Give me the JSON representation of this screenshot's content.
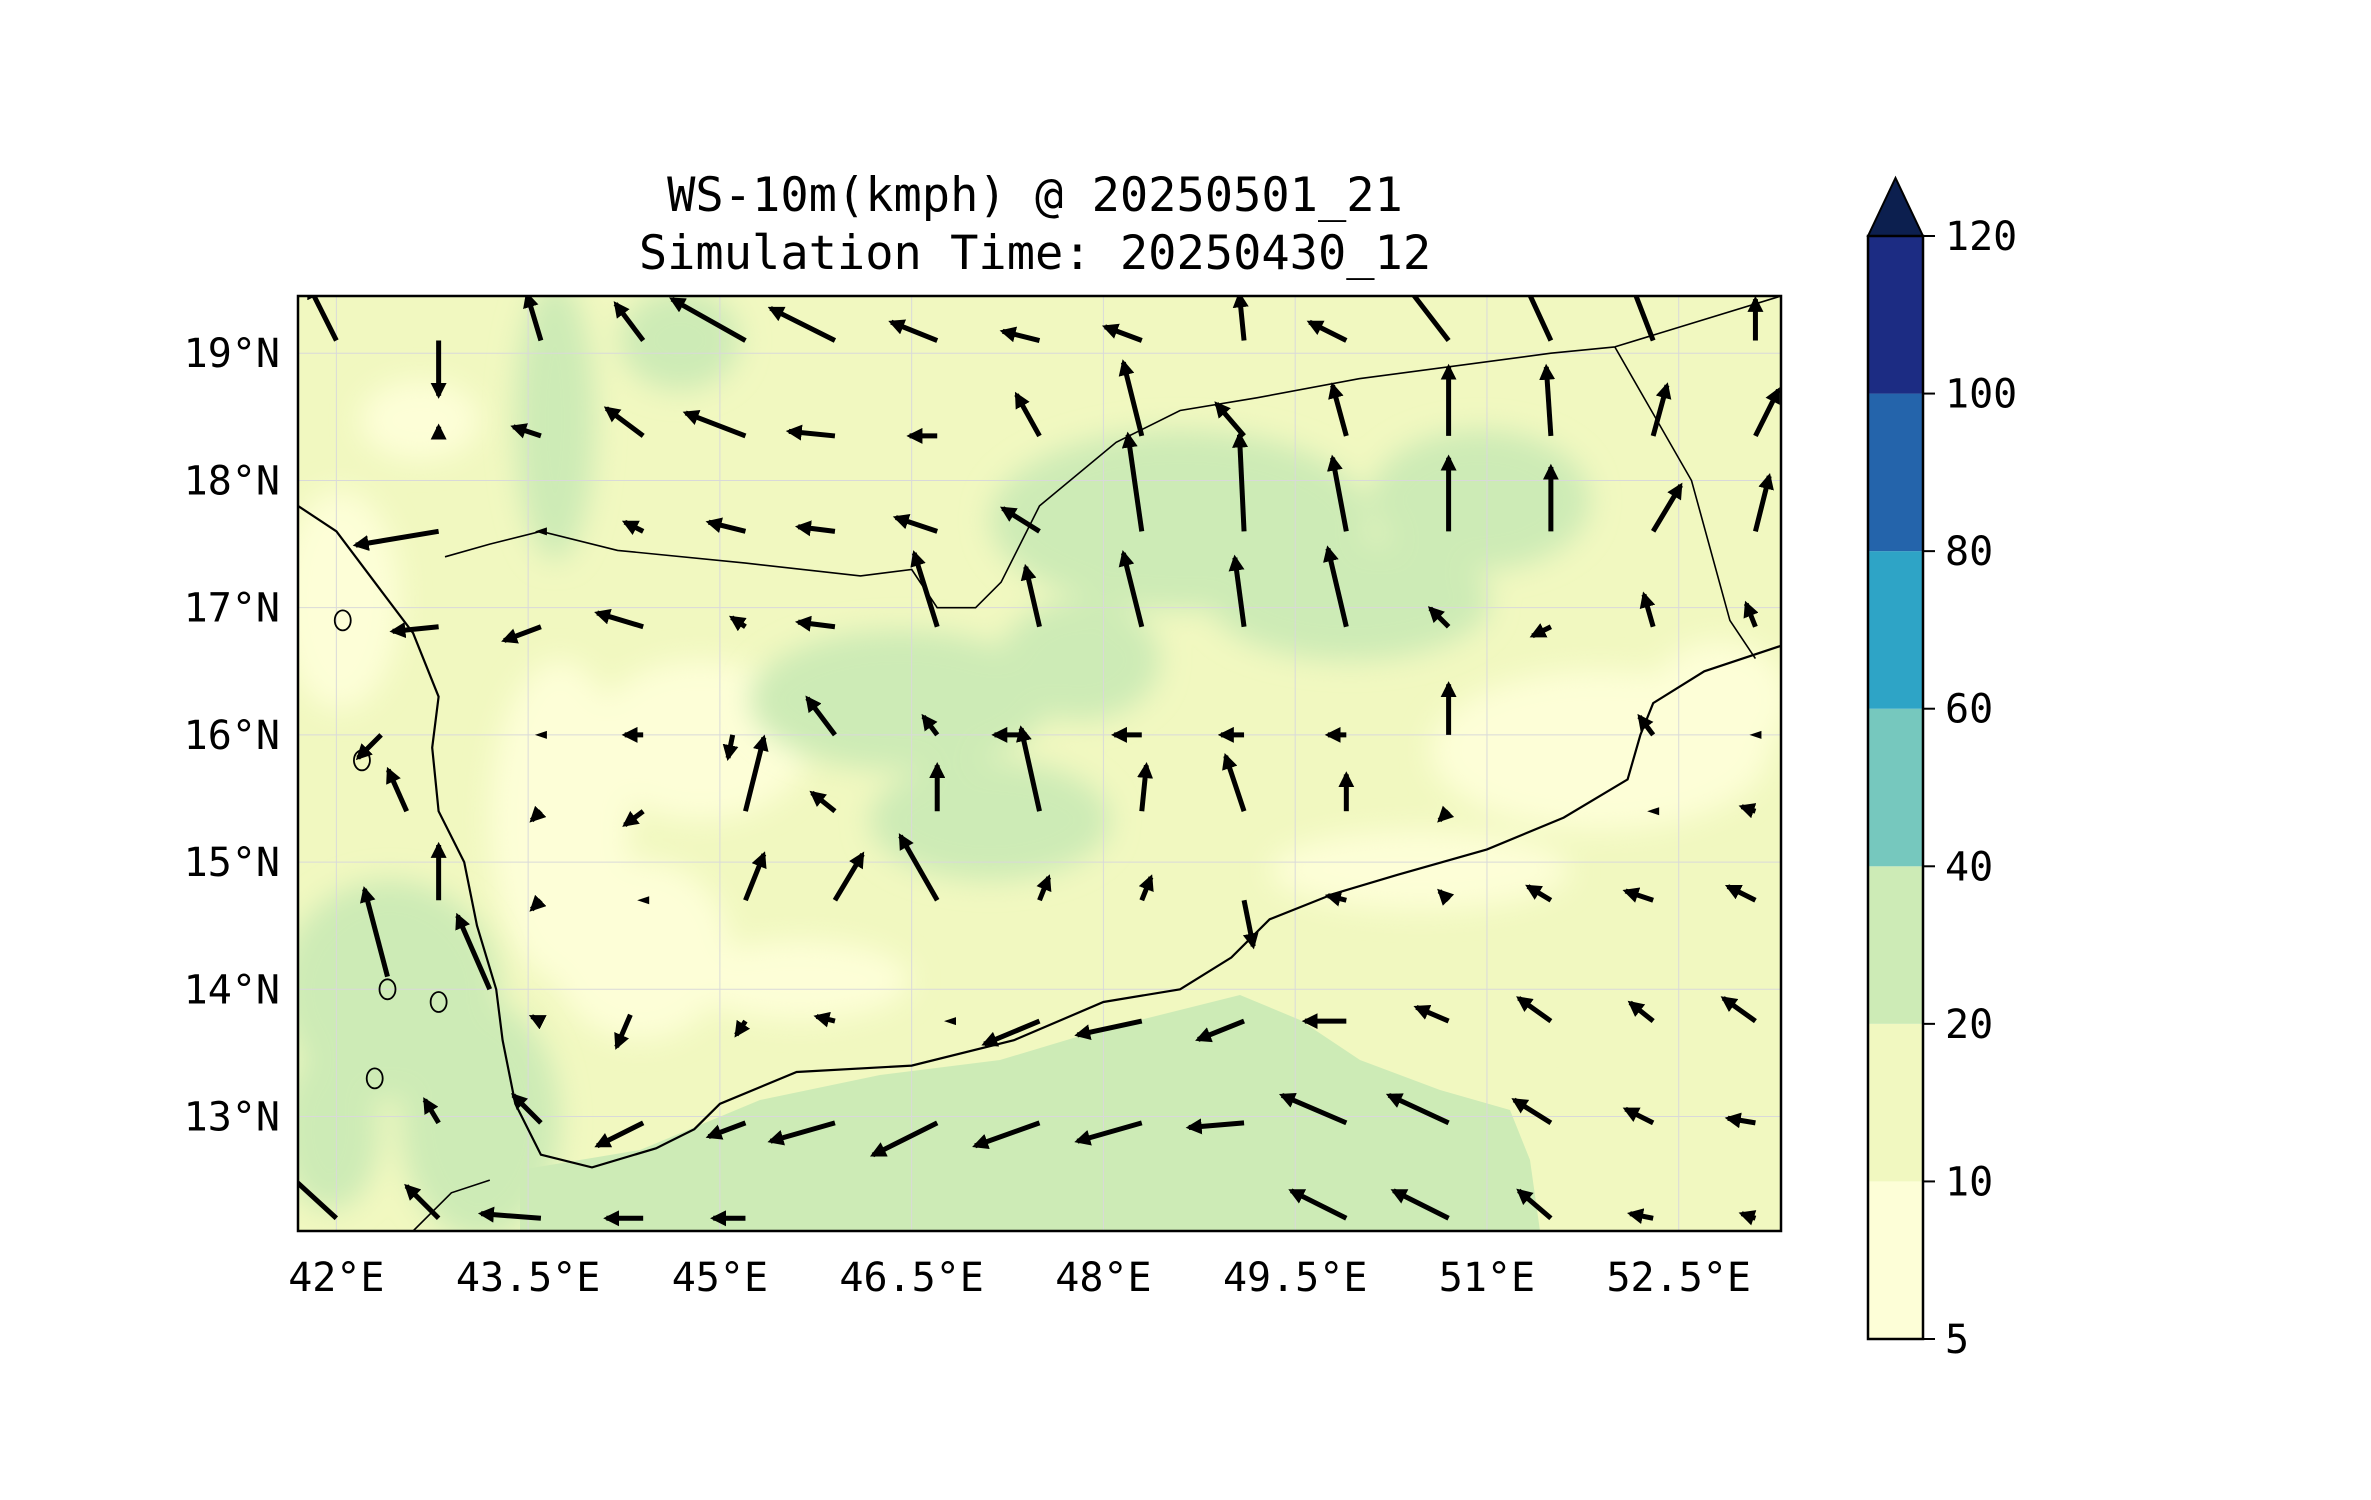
{
  "title": {
    "line1": "WS-10m(kmph) @ 20250501_21",
    "line2": "Simulation Time: 20250430_12"
  },
  "map": {
    "type": "wind-speed-contour-with-vectors",
    "lon_range": [
      41.7,
      53.3
    ],
    "lat_range": [
      12.1,
      19.45
    ],
    "lon_ticks": [
      "42°E",
      "43.5°E",
      "45°E",
      "46.5°E",
      "48°E",
      "49.5°E",
      "51°E",
      "52.5°E"
    ],
    "lon_tick_values": [
      42,
      43.5,
      45,
      46.5,
      48,
      49.5,
      51,
      52.5
    ],
    "lat_ticks": [
      "19°N",
      "18°N",
      "17°N",
      "16°N",
      "15°N",
      "14°N",
      "13°N"
    ],
    "lat_tick_values": [
      19,
      18,
      17,
      16,
      15,
      14,
      13
    ],
    "grid": true,
    "land_color": "#f1f8c0",
    "coastline": [
      [
        41.7,
        17.8
      ],
      [
        42.0,
        17.6
      ],
      [
        42.3,
        17.2
      ],
      [
        42.6,
        16.8
      ],
      [
        42.8,
        16.3
      ],
      [
        42.75,
        15.9
      ],
      [
        42.8,
        15.4
      ],
      [
        43.0,
        15.0
      ],
      [
        43.1,
        14.5
      ],
      [
        43.25,
        14.0
      ],
      [
        43.3,
        13.6
      ],
      [
        43.4,
        13.1
      ],
      [
        43.6,
        12.7
      ],
      [
        44.0,
        12.6
      ],
      [
        44.5,
        12.75
      ],
      [
        44.8,
        12.9
      ],
      [
        45.0,
        13.1
      ],
      [
        45.6,
        13.35
      ],
      [
        46.5,
        13.4
      ],
      [
        47.3,
        13.6
      ],
      [
        48.0,
        13.9
      ],
      [
        48.6,
        14.0
      ],
      [
        49.0,
        14.25
      ],
      [
        49.3,
        14.55
      ],
      [
        49.8,
        14.75
      ],
      [
        50.3,
        14.9
      ],
      [
        51.0,
        15.1
      ],
      [
        51.6,
        15.35
      ],
      [
        52.1,
        15.65
      ],
      [
        52.2,
        16.0
      ],
      [
        52.3,
        16.25
      ],
      [
        52.7,
        16.5
      ],
      [
        53.3,
        16.7
      ]
    ],
    "borders": [
      [
        [
          42.85,
          17.4
        ],
        [
          43.2,
          17.5
        ],
        [
          43.6,
          17.6
        ],
        [
          44.2,
          17.45
        ],
        [
          45.2,
          17.35
        ],
        [
          46.1,
          17.25
        ],
        [
          46.5,
          17.3
        ],
        [
          46.7,
          17.0
        ],
        [
          47.0,
          17.0
        ],
        [
          47.2,
          17.2
        ],
        [
          47.5,
          17.8
        ],
        [
          48.1,
          18.3
        ],
        [
          48.6,
          18.55
        ],
        [
          49.2,
          18.65
        ],
        [
          50.0,
          18.8
        ],
        [
          51.5,
          19.0
        ],
        [
          52.0,
          19.05
        ]
      ],
      [
        [
          52.0,
          19.05
        ],
        [
          53.3,
          19.45
        ]
      ],
      [
        [
          52.0,
          19.05
        ],
        [
          52.6,
          18.0
        ],
        [
          52.9,
          16.9
        ],
        [
          53.1,
          16.6
        ]
      ],
      [
        [
          42.6,
          12.1
        ],
        [
          42.9,
          12.4
        ],
        [
          43.2,
          12.5
        ]
      ]
    ],
    "red_sea_islands": [
      [
        42.05,
        16.9
      ],
      [
        42.2,
        15.8
      ],
      [
        42.4,
        14.0
      ],
      [
        42.8,
        13.9
      ],
      [
        42.3,
        13.3
      ]
    ],
    "vectors": [
      [
        42.0,
        19.1,
        -0.6,
        1.2
      ],
      [
        42.8,
        19.1,
        0,
        -1.2
      ],
      [
        43.6,
        19.1,
        -0.3,
        1.0
      ],
      [
        44.4,
        19.1,
        -0.6,
        0.8
      ],
      [
        45.2,
        19.1,
        -1.6,
        0.9
      ],
      [
        45.9,
        19.1,
        -1.4,
        0.7
      ],
      [
        46.7,
        19.1,
        -1.0,
        0.4
      ],
      [
        47.5,
        19.1,
        -0.8,
        0.2
      ],
      [
        48.3,
        19.1,
        -0.8,
        0.3
      ],
      [
        49.1,
        19.1,
        -0.1,
        1.0
      ],
      [
        49.9,
        19.1,
        -0.8,
        0.4
      ],
      [
        50.7,
        19.1,
        -1.0,
        1.3
      ],
      [
        51.5,
        19.1,
        -0.6,
        1.3
      ],
      [
        52.3,
        19.1,
        -0.5,
        1.3
      ],
      [
        53.1,
        19.1,
        0,
        0.9
      ],
      [
        42.8,
        18.35,
        0,
        0.2
      ],
      [
        43.6,
        18.35,
        -0.6,
        0.2
      ],
      [
        44.4,
        18.35,
        -0.8,
        0.6
      ],
      [
        45.2,
        18.35,
        -1.3,
        0.5
      ],
      [
        45.9,
        18.35,
        -1.0,
        0.1
      ],
      [
        46.7,
        18.35,
        -0.6,
        0.0
      ],
      [
        47.5,
        18.35,
        -0.5,
        0.9
      ],
      [
        48.3,
        18.35,
        -0.4,
        1.6
      ],
      [
        49.1,
        18.35,
        -0.6,
        0.7
      ],
      [
        49.9,
        18.35,
        -0.3,
        1.1
      ],
      [
        50.7,
        18.35,
        0,
        1.5
      ],
      [
        51.5,
        18.35,
        -0.1,
        1.5
      ],
      [
        52.3,
        18.35,
        0.3,
        1.1
      ],
      [
        53.1,
        18.35,
        0.5,
        1.0
      ],
      [
        42.8,
        17.6,
        -1.8,
        -0.3
      ],
      [
        43.6,
        17.6,
        0,
        0
      ],
      [
        44.4,
        17.6,
        -0.4,
        0.2
      ],
      [
        45.2,
        17.6,
        -0.8,
        0.2
      ],
      [
        45.9,
        17.6,
        -0.8,
        0.1
      ],
      [
        46.7,
        17.6,
        -0.9,
        0.3
      ],
      [
        47.5,
        17.6,
        -0.8,
        0.5
      ],
      [
        48.3,
        17.6,
        -0.3,
        2.1
      ],
      [
        49.1,
        17.6,
        -0.1,
        2.1
      ],
      [
        49.9,
        17.6,
        -0.3,
        1.6
      ],
      [
        50.7,
        17.6,
        0,
        1.6
      ],
      [
        51.5,
        17.6,
        0,
        1.4
      ],
      [
        52.3,
        17.6,
        0.6,
        1.0
      ],
      [
        53.1,
        17.6,
        0.3,
        1.2
      ],
      [
        42.8,
        16.85,
        -1.0,
        -0.1
      ],
      [
        43.6,
        16.85,
        -0.8,
        -0.3
      ],
      [
        44.4,
        16.85,
        -1.0,
        0.3
      ],
      [
        45.2,
        16.85,
        -0.3,
        0.2
      ],
      [
        45.9,
        16.85,
        -0.8,
        0.1
      ],
      [
        46.7,
        16.85,
        -0.5,
        1.6
      ],
      [
        47.5,
        16.85,
        -0.3,
        1.3
      ],
      [
        48.3,
        16.85,
        -0.4,
        1.6
      ],
      [
        49.1,
        16.85,
        -0.2,
        1.5
      ],
      [
        49.9,
        16.85,
        -0.4,
        1.7
      ],
      [
        50.7,
        16.85,
        -0.4,
        0.4
      ],
      [
        51.5,
        16.85,
        -0.4,
        -0.2
      ],
      [
        52.3,
        16.85,
        -0.2,
        0.7
      ],
      [
        53.1,
        16.85,
        -0.2,
        0.5
      ],
      [
        42.35,
        16.0,
        -0.5,
        -0.5
      ],
      [
        43.6,
        16.0,
        0,
        0
      ],
      [
        44.4,
        16.0,
        -0.4,
        0.0
      ],
      [
        45.1,
        16.0,
        -0.1,
        -0.5
      ],
      [
        45.9,
        16.0,
        -0.6,
        0.8
      ],
      [
        46.7,
        16.0,
        -0.3,
        0.4
      ],
      [
        47.4,
        16.0,
        -0.7,
        0.0
      ],
      [
        48.3,
        16.0,
        -0.6,
        0.0
      ],
      [
        49.1,
        16.0,
        -0.5,
        0.0
      ],
      [
        49.9,
        16.0,
        -0.4,
        0.0
      ],
      [
        50.7,
        16.0,
        0,
        1.1
      ],
      [
        52.3,
        16.0,
        -0.3,
        0.4
      ],
      [
        53.1,
        16.0,
        0,
        0
      ],
      [
        42.55,
        15.4,
        -0.4,
        0.9
      ],
      [
        43.6,
        15.4,
        -0.2,
        -0.2
      ],
      [
        44.4,
        15.4,
        -0.4,
        -0.3
      ],
      [
        45.2,
        15.4,
        0.4,
        1.6
      ],
      [
        45.9,
        15.4,
        -0.5,
        0.4
      ],
      [
        46.7,
        15.4,
        0,
        1.0
      ],
      [
        47.5,
        15.4,
        -0.4,
        1.8
      ],
      [
        48.3,
        15.4,
        0.1,
        1.0
      ],
      [
        49.1,
        15.4,
        -0.4,
        1.2
      ],
      [
        49.9,
        15.4,
        0,
        0.8
      ],
      [
        50.7,
        15.4,
        -0.2,
        -0.2
      ],
      [
        52.3,
        15.4,
        0,
        0
      ],
      [
        53.1,
        15.4,
        -0.3,
        0.1
      ],
      [
        42.8,
        14.7,
        0,
        1.2
      ],
      [
        43.6,
        14.7,
        -0.2,
        -0.2
      ],
      [
        44.4,
        14.7,
        0,
        0
      ],
      [
        45.2,
        14.7,
        0.4,
        1.0
      ],
      [
        45.9,
        14.7,
        0.6,
        1.0
      ],
      [
        46.7,
        14.7,
        -0.8,
        1.4
      ],
      [
        47.5,
        14.7,
        0.2,
        0.5
      ],
      [
        48.3,
        14.7,
        0.2,
        0.5
      ],
      [
        49.1,
        14.7,
        0.2,
        -1.0
      ],
      [
        49.9,
        14.7,
        -0.4,
        0.1
      ],
      [
        50.7,
        14.7,
        -0.2,
        0.2
      ],
      [
        51.5,
        14.7,
        -0.5,
        0.3
      ],
      [
        52.3,
        14.7,
        -0.6,
        0.2
      ],
      [
        53.1,
        14.7,
        -0.6,
        0.3
      ],
      [
        42.4,
        14.1,
        -0.5,
        1.9
      ],
      [
        43.2,
        14.0,
        -0.7,
        1.6
      ],
      [
        43.6,
        13.75,
        -0.2,
        0.1
      ],
      [
        44.3,
        13.8,
        -0.3,
        -0.7
      ],
      [
        45.2,
        13.75,
        -0.2,
        -0.3
      ],
      [
        45.9,
        13.75,
        -0.4,
        0.1
      ],
      [
        46.8,
        13.75,
        0,
        0
      ],
      [
        47.5,
        13.75,
        -1.2,
        -0.5
      ],
      [
        48.3,
        13.75,
        -1.4,
        -0.3
      ],
      [
        49.1,
        13.75,
        -1.0,
        -0.4
      ],
      [
        49.9,
        13.75,
        -0.9,
        0.0
      ],
      [
        50.7,
        13.75,
        -0.7,
        0.3
      ],
      [
        51.5,
        13.75,
        -0.7,
        0.5
      ],
      [
        52.3,
        13.75,
        -0.5,
        0.4
      ],
      [
        53.1,
        13.75,
        -0.7,
        0.5
      ],
      [
        42.8,
        12.95,
        -0.3,
        0.5
      ],
      [
        43.6,
        12.95,
        -0.6,
        0.6
      ],
      [
        44.4,
        12.95,
        -1.0,
        -0.5
      ],
      [
        45.2,
        12.95,
        -0.8,
        -0.3
      ],
      [
        45.9,
        12.95,
        -1.4,
        -0.4
      ],
      [
        46.7,
        12.95,
        -1.4,
        -0.7
      ],
      [
        47.5,
        12.95,
        -1.4,
        -0.5
      ],
      [
        48.3,
        12.95,
        -1.4,
        -0.4
      ],
      [
        49.1,
        12.95,
        -1.2,
        -0.1
      ],
      [
        49.9,
        12.95,
        -1.4,
        0.6
      ],
      [
        50.7,
        12.95,
        -1.3,
        0.6
      ],
      [
        51.5,
        12.95,
        -0.8,
        0.5
      ],
      [
        52.3,
        12.95,
        -0.6,
        0.3
      ],
      [
        53.1,
        12.95,
        -0.6,
        0.1
      ],
      [
        42.0,
        12.2,
        -1.2,
        1.1
      ],
      [
        42.8,
        12.2,
        -0.7,
        0.7
      ],
      [
        43.6,
        12.2,
        -1.3,
        0.1
      ],
      [
        44.4,
        12.2,
        -0.8,
        0.0
      ],
      [
        45.2,
        12.2,
        -0.7,
        0.0
      ],
      [
        49.9,
        12.2,
        -1.2,
        0.6
      ],
      [
        50.7,
        12.2,
        -1.2,
        0.6
      ],
      [
        51.5,
        12.2,
        -0.7,
        0.6
      ],
      [
        52.3,
        12.2,
        -0.5,
        0.1
      ],
      [
        53.1,
        12.2,
        -0.3,
        0.1
      ]
    ]
  },
  "colorbar": {
    "levels": [
      "5",
      "10",
      "20",
      "40",
      "60",
      "80",
      "100",
      "120"
    ],
    "level_values": [
      5,
      10,
      20,
      40,
      60,
      80,
      100,
      120
    ],
    "colors": [
      "#fdfed7",
      "#f1f8c0",
      "#cdebb6",
      "#76c8be",
      "#2ea4c6",
      "#2464ab",
      "#1c2c83"
    ],
    "extend_color": "#0c1f4f",
    "extend": "max"
  }
}
